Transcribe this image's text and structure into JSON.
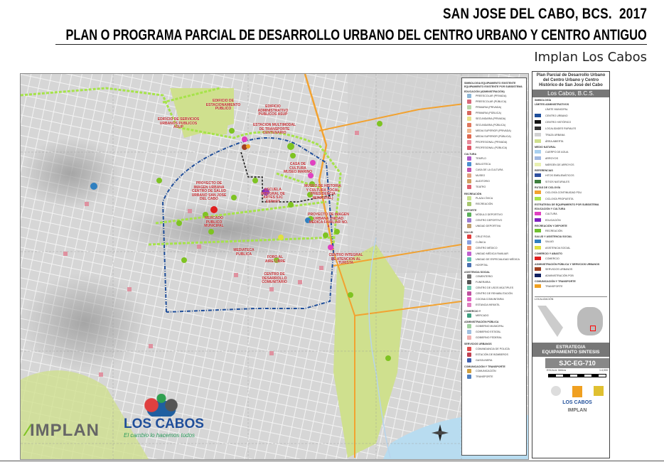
{
  "header": {
    "title": "SAN JOSE DEL CABO, BCS.  2017",
    "subtitle": "PLAN O PROGRAMA PARCIAL DE DESARROLLO URBANO DEL CENTRO URBANO Y CENTRO ANTIGUO",
    "org": "Implan Los Cabos"
  },
  "map": {
    "labels": [
      "EDIFICIO DE ESTACIONAMIENTO PUBLICO",
      "EDIFICIO DE SERVICIOS URBANOS PUBLICOS ASUP",
      "EDIFICIO ADMINISTRATIVO PUBLICOS ASUP",
      "ESTACION MULTIMODAL DE TRANSPORTE CENTENARIO",
      "CASA DE CULTURA MUSEO MARINO",
      "PROYECTO DE IMAGEN URBANA CENTRO DE SALUD URBANO SAN JOSE DEL CABO",
      "ESCUELA INTEGRAL DE ARTES SJC ESPART",
      "MUSEO DE HISTORIA Y CULTURA LOCAL (PRESIDENCIA MUNICIPAL)",
      "PROYECTO DE IMAGEN URBANA UNIDAD MEDICA FAMILIAR NO. 4",
      "MERCADO PUBLICO MUNICIPAL",
      "MEDIATECA PUBLICA",
      "FORO AL AIRE LIBRE",
      "CENTRO DE DESARROLLO COMUNITARIO",
      "CENTRO INTEGRAL DE ATENCION AL TURISTA"
    ],
    "logos": {
      "implan": "IMPLAN",
      "loscabos": "LOS CABOS",
      "slogan": "El cambio lo hacemos todos"
    },
    "colors": {
      "centro_urbano": "#1f4e9a",
      "centro_historico": "#111111",
      "ciclovia_propuesta": "#a6e34a",
      "ciclovia_existente": "#f2a230",
      "area_abierta": "#cfe08e"
    }
  },
  "legend": {
    "title": "SIMBOLOGIA EQUIPAMIENTO EXISTENTE",
    "subtitle": "EQUIPAMIENTO EXISTENTE POR SUBSISTEMA",
    "sections": [
      {
        "name": "EDUCACIÓN (ADMINISTRACIÓN)",
        "items": [
          {
            "label": "PREESCOLAR (PRIVADA)",
            "color": "#8fb8d8"
          },
          {
            "label": "PREESCOLAR (PÚBLICA)",
            "color": "#d86a7a"
          },
          {
            "label": "PRIMARIA (PRIVADA)",
            "color": "#b9d6a8"
          },
          {
            "label": "PRIMARIA (PÚBLICA)",
            "color": "#d8685e"
          },
          {
            "label": "SECUNDARIA (PRIVADA)",
            "color": "#e8e08a"
          },
          {
            "label": "SECUNDARIA (PÚBLICA)",
            "color": "#e0785e"
          },
          {
            "label": "MEDIA SUPERIOR (PRIVADA)",
            "color": "#f0b890"
          },
          {
            "label": "MEDIA SUPERIOR (PÚBLICA)",
            "color": "#e06a50"
          },
          {
            "label": "PROFESIONAL (PRIVADA)",
            "color": "#e88a9a"
          },
          {
            "label": "PROFESIONAL (PÚBLICA)",
            "color": "#e05a6a"
          }
        ]
      },
      {
        "name": "CULTURA",
        "items": [
          {
            "label": "TEMPLO",
            "color": "#b05ac8"
          },
          {
            "label": "BIBLIOTECA",
            "color": "#4a8ed0"
          },
          {
            "label": "CASA DE LA CULTURA",
            "color": "#c050b0"
          },
          {
            "label": "MUSEO",
            "color": "#e0a080"
          },
          {
            "label": "AUDITORIO",
            "color": "#d0a060"
          },
          {
            "label": "TEATRO",
            "color": "#e06070"
          }
        ]
      },
      {
        "name": "RECREACIÓN",
        "items": [
          {
            "label": "PLAZA CÍVICA",
            "color": "#c8e090"
          },
          {
            "label": "RECREACIÓN",
            "color": "#a8c870"
          }
        ]
      },
      {
        "name": "DEPORTE",
        "items": [
          {
            "label": "MÓDULO DEPORTIVO",
            "color": "#5ab05a"
          },
          {
            "label": "CENTRO DEPORTIVO",
            "color": "#9a7ad0"
          },
          {
            "label": "UNIDAD DEPORTIVA",
            "color": "#c0a070"
          }
        ]
      },
      {
        "name": "SALUD",
        "items": [
          {
            "label": "CRUZ ROJA",
            "color": "#e04040"
          },
          {
            "label": "CLÍNICA",
            "color": "#8aa0e0"
          },
          {
            "label": "CENTRO MÉDICO",
            "color": "#f09070"
          },
          {
            "label": "UNIDAD MÉDICA FAMILIAR",
            "color": "#c060d0"
          },
          {
            "label": "UNIDAD DE ESPECIALIDAD MÉDICA",
            "color": "#60c0b0"
          },
          {
            "label": "HOSPITAL",
            "color": "#4a70b0"
          }
        ]
      },
      {
        "name": "ASISTENCIA SOCIAL",
        "items": [
          {
            "label": "CEMENTERIO",
            "color": "#777777"
          },
          {
            "label": "FUNERARIA",
            "color": "#555555"
          },
          {
            "label": "CENTRO DE USOS MÚLTIPLES",
            "color": "#70c8b0"
          },
          {
            "label": "CENTRO DE REHABILITACIÓN",
            "color": "#c050a0"
          },
          {
            "label": "COCINA COMUNITARIA",
            "color": "#e060c0"
          },
          {
            "label": "ESTANCIA INFANTIL",
            "color": "#e080c0"
          }
        ]
      },
      {
        "name": "COMERCIO Y",
        "items": [
          {
            "label": "MERCADO",
            "color": "#40a080"
          }
        ]
      },
      {
        "name": "ADMINISTRACIÓN PÚBLICA",
        "items": [
          {
            "label": "GOBIERNO MUNICIPAL",
            "color": "#a0d0a0"
          },
          {
            "label": "GOBIERNO ESTATAL",
            "color": "#a0c0e0"
          },
          {
            "label": "GOBIERNO FEDERAL",
            "color": "#f0b0b0"
          }
        ]
      },
      {
        "name": "SERVICIOS URBANOS",
        "items": [
          {
            "label": "COMANDANCIA DE POLICÍA",
            "color": "#e05050"
          },
          {
            "label": "ESTACIÓN DE BOMBEROS",
            "color": "#c04050"
          },
          {
            "label": "GASOLINERA",
            "color": "#4060b0"
          }
        ]
      },
      {
        "name": "COMUNICACIÓN Y TRANSPORTE",
        "items": [
          {
            "label": "COMUNICACIÓN",
            "color": "#d0a040"
          },
          {
            "label": "TRANSPORTE",
            "color": "#5080c0"
          }
        ]
      }
    ]
  },
  "panel": {
    "title": "Plan Parcial de Desarrollo Urbano del Centro Urbano y Centro Histórico de San José del Cabo",
    "band": "Los Cabos, B.C.S.",
    "simbologia": "SIMBOLOGÍA",
    "sections": [
      {
        "name": "LÍMITES ADMINISTRATIVOS",
        "items": [
          {
            "label": "LÍMITE MUNICIPAL",
            "color": "#ffffff"
          },
          {
            "label": "CENTRO URBANO",
            "color": "#1f4e9a"
          },
          {
            "label": "CENTRO HISTÓRICO",
            "color": "#111111"
          },
          {
            "label": "LOCALIDADES RURALES",
            "color": "#333333"
          },
          {
            "label": "TRAZA URBANA",
            "color": "#d0d0d0"
          },
          {
            "label": "ÁREA ABIERTA",
            "color": "#cfe08e"
          }
        ]
      },
      {
        "name": "MEDIO NATURAL",
        "items": [
          {
            "label": "CUERPO DE AGUA",
            "color": "#a8d0f0"
          },
          {
            "label": "ARROYOS",
            "color": "#a0b8e0"
          },
          {
            "label": "MÁRGEN DE ARROYOS",
            "color": "#e8f0b0"
          }
        ]
      },
      {
        "name": "REFERENCIAS",
        "items": [
          {
            "label": "HITOS EMBLEMÁTICOS",
            "color": "#3050a0"
          },
          {
            "label": "SITIOS NATURALES",
            "color": "#408040"
          }
        ]
      },
      {
        "name": "RUTAS DE CICLOVÍA",
        "items": [
          {
            "label": "CICLOVÍA CONTINUIDAD PDU",
            "color": "#f2a230"
          },
          {
            "label": "CICLOVÍA PROPUESTA",
            "color": "#a6e34a"
          }
        ]
      },
      {
        "name": "ESTRATEGIA DE EQUIPAMIENTO POR SUBSISTEMA",
        "items": []
      },
      {
        "name": "EDUCACIÓN Y CULTURA",
        "items": [
          {
            "label": "CULTURA",
            "color": "#e040c0"
          },
          {
            "label": "EDUCACIÓN",
            "color": "#8020c0"
          }
        ]
      },
      {
        "name": "RECREACIÓN Y DEPORTE",
        "items": [
          {
            "label": "RECREACIÓN",
            "color": "#70c030"
          }
        ]
      },
      {
        "name": "SALUD Y ASISTENCIA SOCIAL",
        "items": [
          {
            "label": "SALUD",
            "color": "#3080c0"
          },
          {
            "label": "ASISTENCIA SOCIAL",
            "color": "#e0e040"
          }
        ]
      },
      {
        "name": "COMERCIO Y ABASTO",
        "items": [
          {
            "label": "COMERCIO",
            "color": "#e02020"
          }
        ]
      },
      {
        "name": "ADMINISTRACIÓN PÚBLICA Y SERVICIOS URBANOS",
        "items": [
          {
            "label": "SERVICIOS URBANOS",
            "color": "#a04020"
          },
          {
            "label": "ADMINISTRACIÓN POB",
            "color": "#102060"
          }
        ]
      },
      {
        "name": "COMUNICACIÓN Y TRANSPORTE",
        "items": [
          {
            "label": "TRANSPORTE",
            "color": "#f0a020"
          }
        ]
      }
    ],
    "localizacion": "LOCALIZACIÓN",
    "strategy": "ESTRATEGIA EQUIPAMIENTO SINTESIS",
    "code": "SJC-EG-710",
    "escala": "ESCALA: Metros",
    "ratio": "1:4,000",
    "logo_loscabos": "LOS CABOS",
    "logo_implan": "IMPLAN"
  }
}
